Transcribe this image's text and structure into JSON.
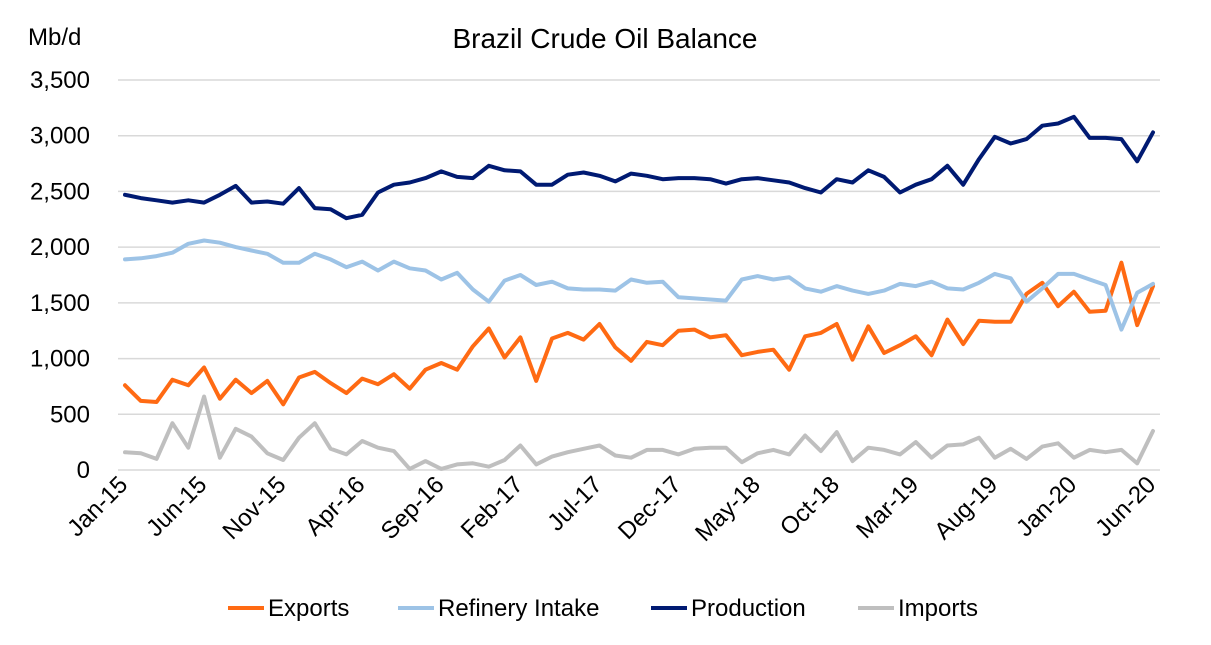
{
  "chart_data": {
    "type": "line",
    "title": "Brazil Crude Oil Balance",
    "ylabel": "Mb/d",
    "xlabel": "",
    "ylim": [
      0,
      3500
    ],
    "yticks": [
      0,
      500,
      1000,
      1500,
      2000,
      2500,
      3000,
      3500
    ],
    "ytick_labels": [
      "0",
      "500",
      "1,000",
      "1,500",
      "2,000",
      "2,500",
      "3,000",
      "3,500"
    ],
    "x_ticks": [
      {
        "index": 0,
        "label": "Jan-15"
      },
      {
        "index": 5,
        "label": "Jun-15"
      },
      {
        "index": 10,
        "label": "Nov-15"
      },
      {
        "index": 15,
        "label": "Apr-16"
      },
      {
        "index": 20,
        "label": "Sep-16"
      },
      {
        "index": 25,
        "label": "Feb-17"
      },
      {
        "index": 30,
        "label": "Jul-17"
      },
      {
        "index": 35,
        "label": "Dec-17"
      },
      {
        "index": 40,
        "label": "May-18"
      },
      {
        "index": 45,
        "label": "Oct-18"
      },
      {
        "index": 50,
        "label": "Mar-19"
      },
      {
        "index": 55,
        "label": "Aug-19"
      },
      {
        "index": 60,
        "label": "Jan-20"
      },
      {
        "index": 65,
        "label": "Jun-20"
      }
    ],
    "grid": true,
    "legend": "bottom",
    "series": [
      {
        "name": "Exports",
        "color": "#FF6A13",
        "values": [
          760,
          620,
          610,
          810,
          760,
          920,
          640,
          810,
          690,
          800,
          590,
          830,
          880,
          780,
          690,
          820,
          770,
          860,
          730,
          900,
          960,
          900,
          1110,
          1270,
          1010,
          1190,
          800,
          1180,
          1230,
          1170,
          1310,
          1100,
          980,
          1150,
          1120,
          1250,
          1260,
          1190,
          1210,
          1030,
          1060,
          1080,
          900,
          1200,
          1230,
          1310,
          990,
          1290,
          1050,
          1120,
          1200,
          1030,
          1350,
          1130,
          1340,
          1330,
          1330,
          1580,
          1680,
          1470,
          1600,
          1420,
          1430,
          1860,
          1300,
          1650
        ]
      },
      {
        "name": "Refinery Intake",
        "color": "#9DC3E6",
        "values": [
          1890,
          1900,
          1920,
          1950,
          2030,
          2060,
          2040,
          2000,
          1970,
          1940,
          1860,
          1860,
          1940,
          1890,
          1820,
          1870,
          1790,
          1870,
          1810,
          1790,
          1710,
          1770,
          1620,
          1510,
          1700,
          1750,
          1660,
          1690,
          1630,
          1620,
          1620,
          1610,
          1710,
          1680,
          1690,
          1550,
          1540,
          1530,
          1520,
          1710,
          1740,
          1710,
          1730,
          1630,
          1600,
          1650,
          1610,
          1580,
          1610,
          1670,
          1650,
          1690,
          1630,
          1620,
          1680,
          1760,
          1720,
          1510,
          1630,
          1760,
          1760,
          1710,
          1660,
          1260,
          1590,
          1670
        ]
      },
      {
        "name": "Production",
        "color": "#001A72",
        "values": [
          2470,
          2440,
          2420,
          2400,
          2420,
          2400,
          2470,
          2550,
          2400,
          2410,
          2390,
          2530,
          2350,
          2340,
          2260,
          2290,
          2490,
          2560,
          2580,
          2620,
          2680,
          2630,
          2620,
          2730,
          2690,
          2680,
          2560,
          2560,
          2650,
          2670,
          2640,
          2590,
          2660,
          2640,
          2610,
          2620,
          2620,
          2610,
          2570,
          2610,
          2620,
          2600,
          2580,
          2530,
          2490,
          2610,
          2580,
          2690,
          2630,
          2490,
          2560,
          2610,
          2730,
          2560,
          2790,
          2990,
          2930,
          2970,
          3090,
          3110,
          3170,
          2980,
          2980,
          2970,
          2770,
          3030
        ]
      },
      {
        "name": "Imports",
        "color": "#BFBFBF",
        "values": [
          160,
          150,
          100,
          420,
          200,
          660,
          110,
          370,
          300,
          150,
          90,
          290,
          420,
          190,
          140,
          260,
          200,
          170,
          10,
          80,
          10,
          50,
          60,
          30,
          90,
          220,
          50,
          120,
          160,
          190,
          220,
          130,
          110,
          180,
          180,
          140,
          190,
          200,
          200,
          70,
          150,
          180,
          140,
          310,
          170,
          340,
          80,
          200,
          180,
          140,
          250,
          110,
          220,
          230,
          290,
          110,
          190,
          100,
          210,
          240,
          110,
          180,
          160,
          180,
          60,
          350
        ]
      }
    ]
  }
}
